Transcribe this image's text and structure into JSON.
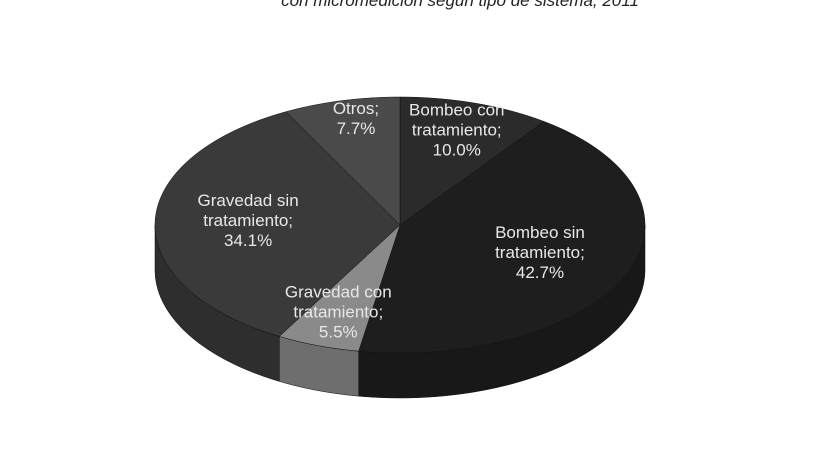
{
  "chart_data": {
    "type": "pie",
    "title": "con micromedición según tipo de sistema, 2011",
    "categories": [
      "Bombeo con tratamiento",
      "Bombeo sin tratamiento",
      "Gravedad con tratamiento",
      "Gravedad sin tratamiento",
      "Otros"
    ],
    "values": [
      10.0,
      42.7,
      5.5,
      34.1,
      7.7
    ],
    "value_labels": [
      "10.0%",
      "42.7%",
      "5.5%",
      "34.1%",
      "7.7%"
    ],
    "colors": [
      "#2b2b2b",
      "#1e1e1e",
      "#8a8a8a",
      "#3a3a3a",
      "#4a4a4a"
    ]
  }
}
